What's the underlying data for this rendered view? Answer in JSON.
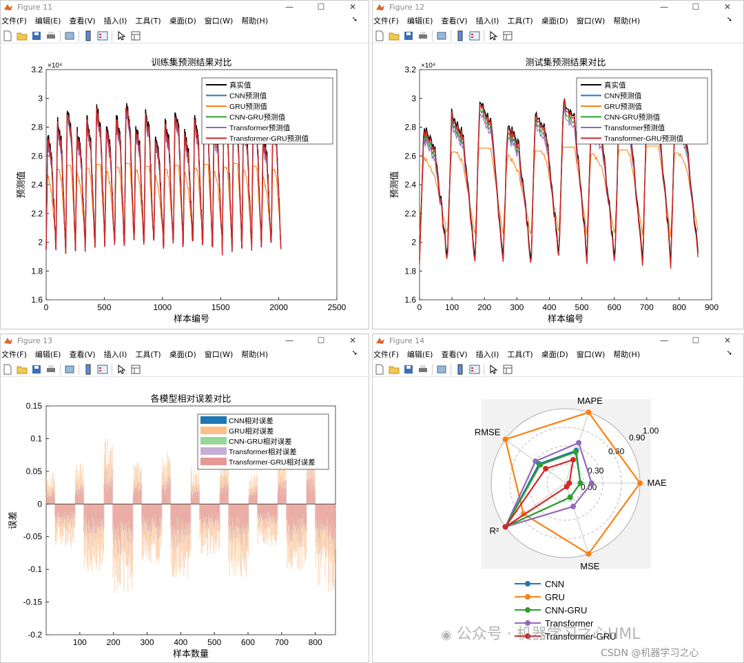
{
  "windows": [
    {
      "title": "Figure 11",
      "menus": [
        "文件(F)",
        "编辑(E)",
        "查看(V)",
        "插入(I)",
        "工具(T)",
        "桌面(D)",
        "窗口(W)",
        "帮助(H)"
      ]
    },
    {
      "title": "Figure 12",
      "menus": [
        "文件(F)",
        "编辑(E)",
        "查看(V)",
        "插入(I)",
        "工具(T)",
        "桌面(D)",
        "窗口(W)",
        "帮助(H)"
      ]
    },
    {
      "title": "Figure 13",
      "menus": [
        "文件(F)",
        "编辑(E)",
        "查看(V)",
        "插入(I)",
        "工具(T)",
        "桌面(D)",
        "窗口(W)",
        "帮助(H)"
      ]
    },
    {
      "title": "Figure 14",
      "menus": [
        "文件(F)",
        "编辑(E)",
        "查看(V)",
        "插入(I)",
        "工具(T)",
        "桌面(D)",
        "窗口(W)",
        "帮助(H)"
      ]
    }
  ],
  "window_buttons": {
    "minimize": "—",
    "maximize": "☐",
    "close": "✕"
  },
  "watermark": {
    "main": "公众号 · 机器学习之心HML",
    "csdn": "CSDN @机器学习之心"
  },
  "chart_data": [
    {
      "type": "line",
      "title": "训练集预测结果对比",
      "xlabel": "样本编号",
      "ylabel": "预测值",
      "xlim": [
        0,
        2500
      ],
      "ylim": [
        1.6,
        3.2
      ],
      "y_exponent": "×10⁴",
      "xticks": [
        "0",
        "500",
        "1000",
        "1500",
        "2000",
        "2500"
      ],
      "yticks": [
        "1.6",
        "1.8",
        "2",
        "2.2",
        "2.4",
        "2.6",
        "2.8",
        "3",
        "3.2"
      ],
      "n_points": 2020,
      "cycles": 24,
      "legend": [
        "真实值",
        "CNN预测值",
        "GRU预测值",
        "CNN-GRU预测值",
        "Transformer预测值",
        "Transformer-GRU预测值"
      ],
      "colors": [
        "#000000",
        "#1f77b4",
        "#ff7f0e",
        "#2ca02c",
        "#9467bd",
        "#d62728"
      ],
      "series_peaks": [
        2.75,
        2.7,
        2.48,
        2.7,
        2.68,
        2.72
      ],
      "series_troughs": [
        1.95,
        1.95,
        2.0,
        1.95,
        1.95,
        1.95
      ]
    },
    {
      "type": "line",
      "title": "测试集预测结果对比",
      "xlabel": "样本编号",
      "ylabel": "预测值",
      "xlim": [
        0,
        900
      ],
      "ylim": [
        1.6,
        3.2
      ],
      "y_exponent": "×10⁴",
      "xticks": [
        "0",
        "100",
        "200",
        "300",
        "400",
        "500",
        "600",
        "700",
        "800",
        "900"
      ],
      "yticks": [
        "1.6",
        "1.8",
        "2",
        "2.2",
        "2.4",
        "2.6",
        "2.8",
        "3",
        "3.2"
      ],
      "n_points": 860,
      "cycles": 10,
      "legend": [
        "真实值",
        "CNN预测值",
        "GRU预测值",
        "CNN-GRU预测值",
        "Transformer预测值",
        "Transformer-GRU预测值"
      ],
      "colors": [
        "#000000",
        "#1f77b4",
        "#ff7f0e",
        "#2ca02c",
        "#9467bd",
        "#d62728"
      ],
      "series_peaks": [
        2.8,
        2.75,
        2.6,
        2.75,
        2.72,
        2.78
      ],
      "series_troughs": [
        1.88,
        1.9,
        2.05,
        1.9,
        1.88,
        1.85
      ]
    },
    {
      "type": "bar",
      "title": "各模型相对误差对比",
      "xlabel": "样本数量",
      "ylabel": "误差",
      "xlim": [
        0,
        860
      ],
      "ylim": [
        -0.2,
        0.15
      ],
      "xticks": [
        "100",
        "200",
        "300",
        "400",
        "500",
        "600",
        "700",
        "800"
      ],
      "yticks": [
        "0.15",
        "0.1",
        "0.05",
        "0",
        "-0.05",
        "-0.1",
        "-0.15",
        "-0.2"
      ],
      "legend": [
        "CNN相对误差",
        "GRU相对误差",
        "CNN-GRU相对误差",
        "Transformer相对误差",
        "Transformer-GRU相对误差"
      ],
      "colors": [
        "#1f77b4",
        "#fdbf8a",
        "#98d69a",
        "#c5b0d5",
        "#e99696"
      ],
      "gru_error_range": [
        -0.15,
        0.11
      ]
    },
    {
      "type": "radar",
      "axes": [
        "MAPE",
        "MAE",
        "MSE",
        "R²",
        "RMSE"
      ],
      "rticks": [
        "0.00",
        "0.30",
        "0.60",
        "0.90",
        "1.00"
      ],
      "legend": [
        "CNN",
        "GRU",
        "CNN-GRU",
        "Transformer",
        "Transformer-GRU"
      ],
      "colors": [
        "#1f77b4",
        "#ff7f0e",
        "#2ca02c",
        "#9467bd",
        "#d62728"
      ],
      "series": [
        {
          "name": "CNN",
          "values": [
            0.46,
            0.2,
            0.2,
            1.0,
            0.44
          ]
        },
        {
          "name": "GRU",
          "values": [
            1.0,
            1.0,
            1.0,
            0.7,
            1.0
          ]
        },
        {
          "name": "CNN-GRU",
          "values": [
            0.44,
            0.2,
            0.2,
            1.0,
            0.42
          ]
        },
        {
          "name": "Transformer",
          "values": [
            0.57,
            0.35,
            0.33,
            1.0,
            0.5
          ]
        },
        {
          "name": "Transformer-GRU",
          "values": [
            0.33,
            0.05,
            0.05,
            1.0,
            0.33
          ]
        }
      ]
    }
  ]
}
